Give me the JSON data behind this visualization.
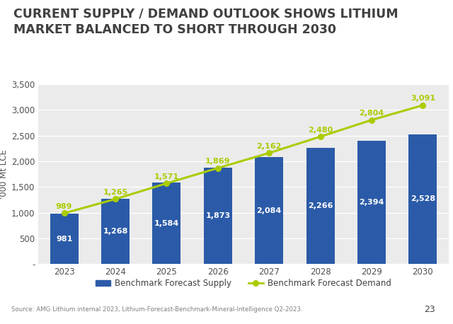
{
  "title_line1": "CURRENT SUPPLY / DEMAND OUTLOOK SHOWS LITHIUM",
  "title_line2": "MARKET BALANCED TO SHORT THROUGH 2030",
  "years": [
    2023,
    2024,
    2025,
    2026,
    2027,
    2028,
    2029,
    2030
  ],
  "supply": [
    981,
    1268,
    1584,
    1873,
    2084,
    2266,
    2394,
    2528
  ],
  "demand": [
    989,
    1265,
    1571,
    1869,
    2162,
    2480,
    2804,
    3091
  ],
  "bar_color": "#2B5BA8",
  "line_color": "#AACC00",
  "line_marker": "o",
  "ylabel": "'000 Mt LCE",
  "ylim": [
    0,
    3500
  ],
  "yticks": [
    0,
    500,
    1000,
    1500,
    2000,
    2500,
    3000,
    3500
  ],
  "ytick_labels": [
    "-",
    "500",
    "1,000",
    "1,500",
    "2,000",
    "2,500",
    "3,000",
    "3,500"
  ],
  "plot_bg_color": "#EBEBEB",
  "outer_bg_color": "#F5F5F5",
  "title_color": "#404040",
  "title_fontsize": 12.5,
  "tick_fontsize": 8.5,
  "bar_label_fontsize": 8,
  "demand_label_fontsize": 8,
  "source_text": "Source: AMG Lithium internal 2023, Lithium-Forecast-Benchmark-Mineral-Intelligence Q2-2023.",
  "legend_supply": "Benchmark Forecast Supply",
  "legend_demand": "Benchmark Forecast Demand",
  "page_number": "23",
  "amg_logo_color": "#1F4E99"
}
